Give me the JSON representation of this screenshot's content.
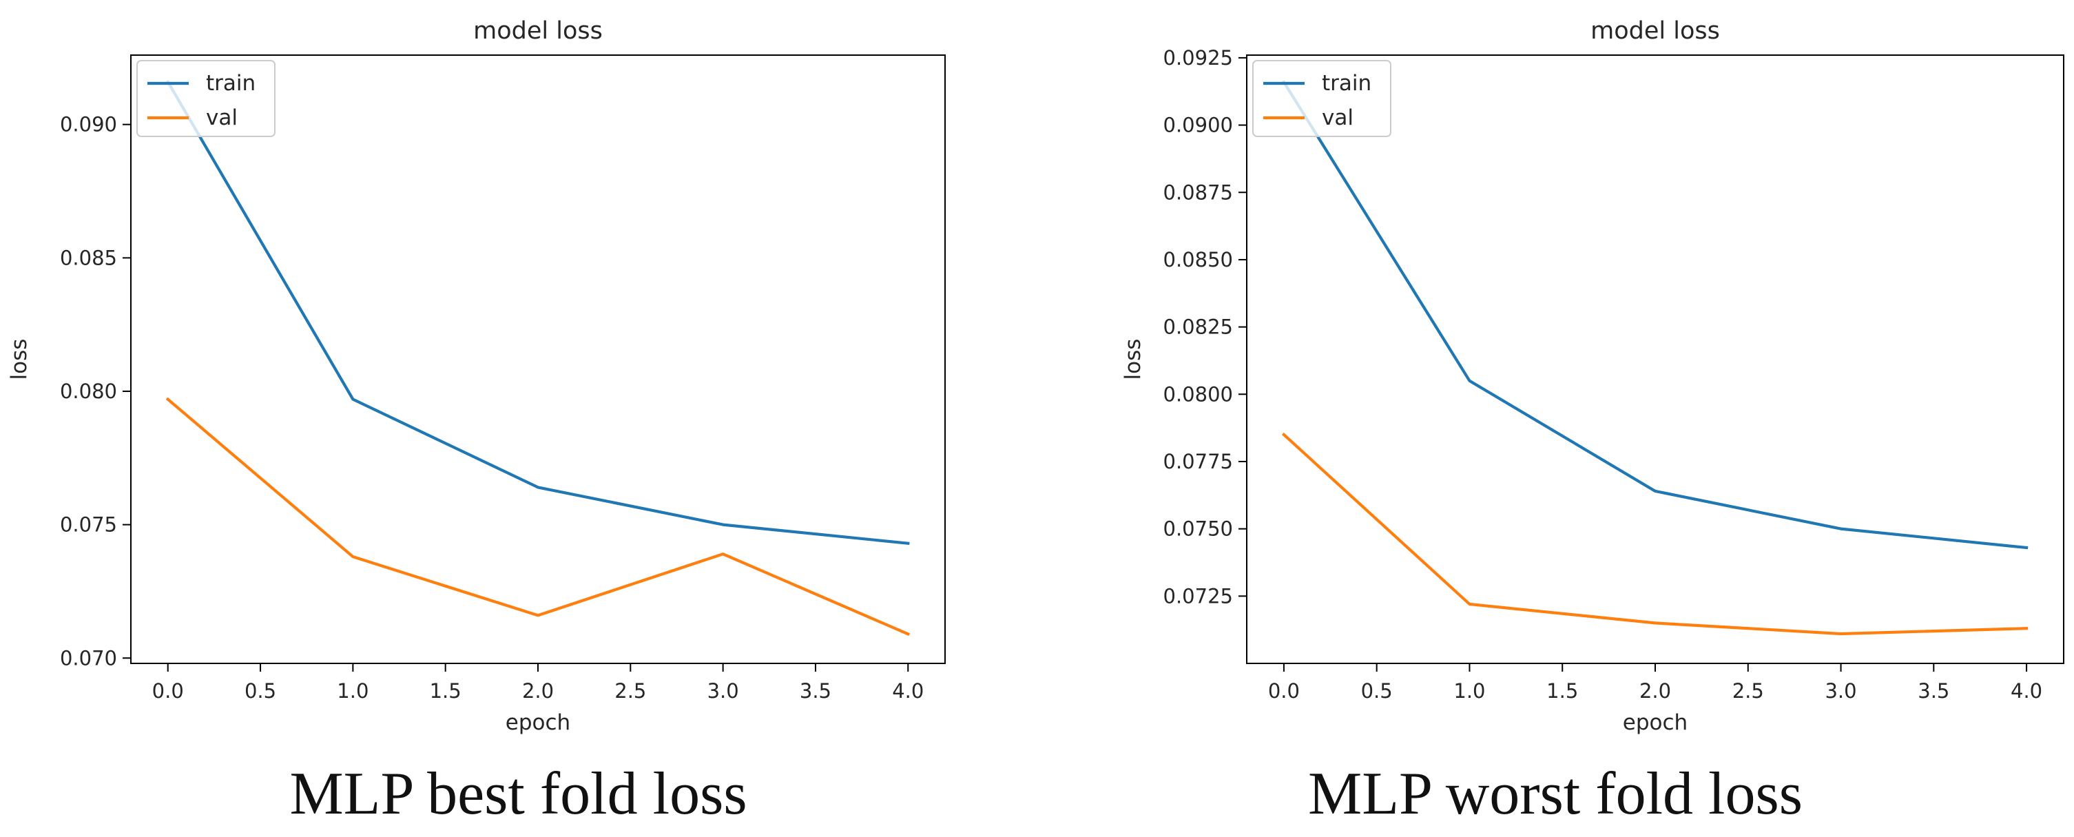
{
  "figure": {
    "colors": {
      "train": "#1f77b4",
      "val": "#ff7f0e",
      "axis": "#000000",
      "text": "#262626"
    }
  },
  "chart_data": [
    {
      "type": "line",
      "title": "model loss",
      "caption": "MLP best fold loss",
      "xlabel": "epoch",
      "ylabel": "loss",
      "x": [
        0,
        1,
        2,
        3,
        4
      ],
      "xlim": [
        -0.2,
        4.2
      ],
      "ylim": [
        0.0698,
        0.0926
      ],
      "xticks": [
        0.0,
        0.5,
        1.0,
        1.5,
        2.0,
        2.5,
        3.0,
        3.5,
        4.0
      ],
      "xtick_labels": [
        "0.0",
        "0.5",
        "1.0",
        "1.5",
        "2.0",
        "2.5",
        "3.0",
        "3.5",
        "4.0"
      ],
      "yticks": [
        0.07,
        0.075,
        0.08,
        0.085,
        0.09
      ],
      "ytick_labels": [
        "0.070",
        "0.075",
        "0.080",
        "0.085",
        "0.090"
      ],
      "legend": "upper-left",
      "series": [
        {
          "name": "train",
          "values": [
            0.0916,
            0.0797,
            0.0764,
            0.075,
            0.0743
          ]
        },
        {
          "name": "val",
          "values": [
            0.0797,
            0.0738,
            0.0716,
            0.0739,
            0.0709
          ]
        }
      ]
    },
    {
      "type": "line",
      "title": "model loss",
      "caption": "MLP worst fold loss",
      "xlabel": "epoch",
      "ylabel": "loss",
      "x": [
        0,
        1,
        2,
        3,
        4
      ],
      "xlim": [
        -0.2,
        4.2
      ],
      "ylim": [
        0.07,
        0.0926
      ],
      "xticks": [
        0.0,
        0.5,
        1.0,
        1.5,
        2.0,
        2.5,
        3.0,
        3.5,
        4.0
      ],
      "xtick_labels": [
        "0.0",
        "0.5",
        "1.0",
        "1.5",
        "2.0",
        "2.5",
        "3.0",
        "3.5",
        "4.0"
      ],
      "yticks": [
        0.0725,
        0.075,
        0.0775,
        0.08,
        0.0825,
        0.085,
        0.0875,
        0.09,
        0.0925
      ],
      "ytick_labels": [
        "0.0725",
        "0.0750",
        "0.0775",
        "0.0800",
        "0.0825",
        "0.0850",
        "0.0875",
        "0.0900",
        "0.0925"
      ],
      "legend": "upper-left",
      "series": [
        {
          "name": "train",
          "values": [
            0.0916,
            0.0805,
            0.0764,
            0.075,
            0.0743
          ]
        },
        {
          "name": "val",
          "values": [
            0.0785,
            0.0722,
            0.0715,
            0.0711,
            0.0713
          ]
        }
      ]
    }
  ]
}
